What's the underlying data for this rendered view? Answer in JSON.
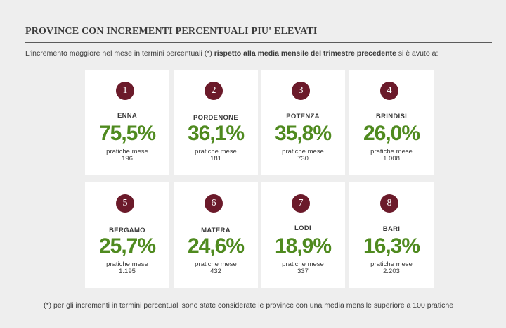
{
  "title": "PROVINCE CON INCREMENTI PERCENTUALI PIU' ELEVATI",
  "intro": {
    "part1": "L'incremento maggiore nel mese in termini percentuali (*) ",
    "bold": " rispetto alla media mensile del trimestre precedente",
    "part2": " si è avuto a:"
  },
  "colors": {
    "rank_badge": "#6b1a2a",
    "percentage": "#4f8a1f",
    "card_bg": "#ffffff",
    "page_bg": "#eeeeee"
  },
  "cards": [
    {
      "rank": "1",
      "province": "ENNA",
      "percentage": "75,5%",
      "label": "pratiche mese",
      "value": "196"
    },
    {
      "rank": "2",
      "province": "PORDENONE",
      "percentage": "36,1%",
      "label": "pratiche mese",
      "value": "181"
    },
    {
      "rank": "3",
      "province": "POTENZA",
      "percentage": "35,8%",
      "label": "pratiche mese",
      "value": "730"
    },
    {
      "rank": "4",
      "province": "BRINDISI",
      "percentage": "26,0%",
      "label": "pratiche mese",
      "value": "1.008"
    },
    {
      "rank": "5",
      "province": "BERGAMO",
      "percentage": "25,7%",
      "label": "pratiche mese",
      "value": "1.195"
    },
    {
      "rank": "6",
      "province": "MATERA",
      "percentage": "24,6%",
      "label": "pratiche mese",
      "value": "432"
    },
    {
      "rank": "7",
      "province": "LODI",
      "percentage": "18,9%",
      "label": "pratiche mese",
      "value": "337"
    },
    {
      "rank": "8",
      "province": "BARI",
      "percentage": "16,3%",
      "label": "pratiche mese",
      "value": "2.203"
    }
  ],
  "footnote": "(*) per gli incrementi in termini percentuali sono state considerate le province con una media mensile  superiore a 100 pratiche"
}
